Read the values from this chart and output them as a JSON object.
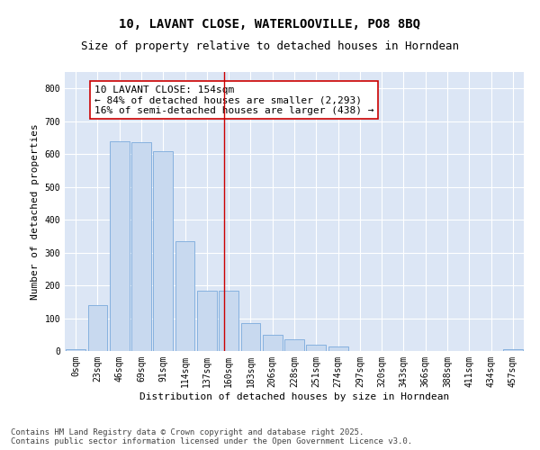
{
  "title": "10, LAVANT CLOSE, WATERLOOVILLE, PO8 8BQ",
  "subtitle": "Size of property relative to detached houses in Horndean",
  "xlabel": "Distribution of detached houses by size in Horndean",
  "ylabel": "Number of detached properties",
  "categories": [
    "0sqm",
    "23sqm",
    "46sqm",
    "69sqm",
    "91sqm",
    "114sqm",
    "137sqm",
    "160sqm",
    "183sqm",
    "206sqm",
    "228sqm",
    "251sqm",
    "274sqm",
    "297sqm",
    "320sqm",
    "343sqm",
    "366sqm",
    "388sqm",
    "411sqm",
    "434sqm",
    "457sqm"
  ],
  "values": [
    5,
    140,
    640,
    635,
    610,
    335,
    185,
    185,
    85,
    50,
    35,
    20,
    15,
    0,
    0,
    0,
    0,
    0,
    0,
    0,
    5
  ],
  "bar_color": "#c8d9ef",
  "bar_edge_color": "#7aaadc",
  "vline_x": 6.77,
  "vline_color": "#cc0000",
  "annotation_text": "10 LAVANT CLOSE: 154sqm\n← 84% of detached houses are smaller (2,293)\n16% of semi-detached houses are larger (438) →",
  "annotation_box_color": "#ffffff",
  "annotation_box_edge": "#cc0000",
  "ylim": [
    0,
    850
  ],
  "yticks": [
    0,
    100,
    200,
    300,
    400,
    500,
    600,
    700,
    800
  ],
  "background_color": "#dce6f5",
  "footer_text": "Contains HM Land Registry data © Crown copyright and database right 2025.\nContains public sector information licensed under the Open Government Licence v3.0.",
  "title_fontsize": 10,
  "subtitle_fontsize": 9,
  "xlabel_fontsize": 8,
  "ylabel_fontsize": 8,
  "tick_fontsize": 7,
  "annotation_fontsize": 8,
  "footer_fontsize": 6.5
}
